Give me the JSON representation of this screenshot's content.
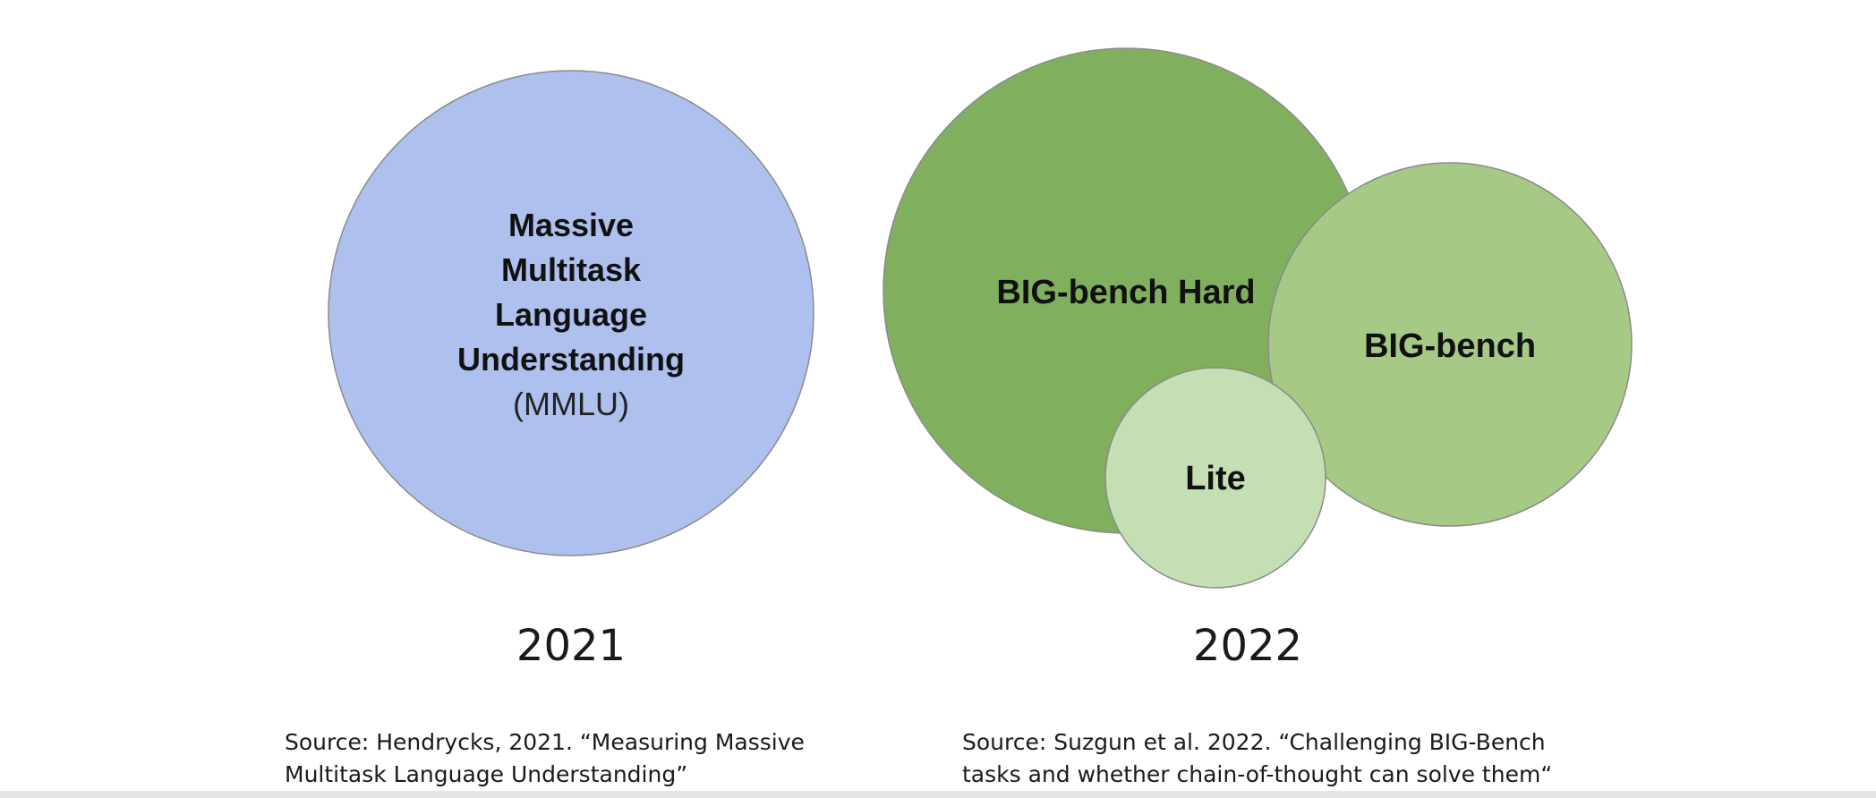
{
  "colors": {
    "mmlu": "#aec0ee",
    "big_bench_hard": "#80b05e",
    "big_bench": "#a6ca86",
    "lite": "#c4dfb3",
    "stroke": "#8a8a8a"
  },
  "mmlu": {
    "label_lines": [
      "Massive",
      "Multitask",
      "Language",
      "Understanding"
    ],
    "abbrev": "(MMLU)",
    "year": "2021",
    "source_lines": [
      "Source: Hendrycks, 2021. “Measuring Massive",
      "Multitask Language Understanding”"
    ]
  },
  "big_bench_group": {
    "hard_label": "BIG-bench Hard",
    "bench_label": "BIG-bench",
    "lite_label": "Lite",
    "year": "2022",
    "source_lines": [
      "Source: Suzgun et al. 2022. “Challenging BIG-Bench",
      "tasks and whether chain-of-thought can solve them“"
    ]
  }
}
